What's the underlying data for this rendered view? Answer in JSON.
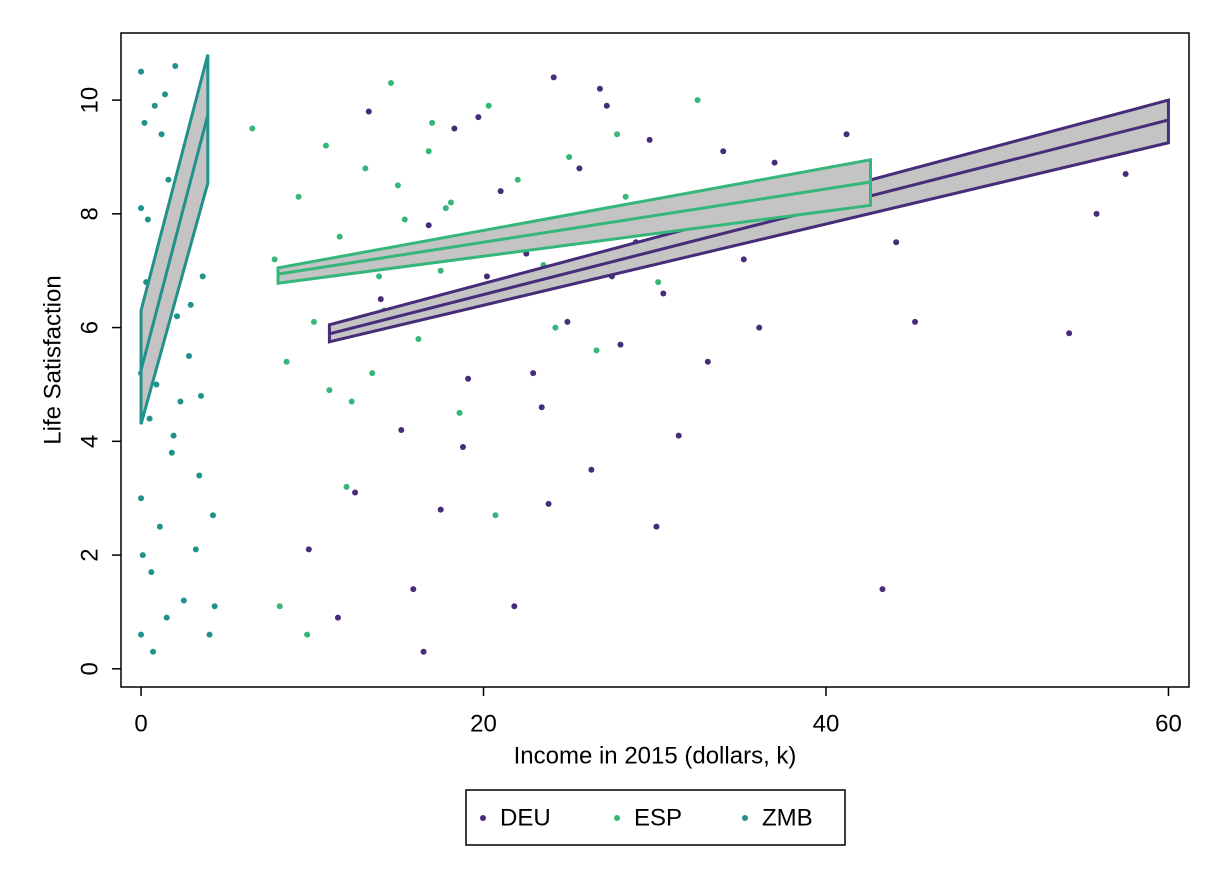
{
  "chart_data": {
    "type": "scatter",
    "x_label": "Income in 2015 (dollars, k)",
    "y_label": "Life Satisfaction",
    "xlim": [
      -1.17,
      61.2
    ],
    "ylim": [
      -0.32,
      11.18
    ],
    "xticks": [
      0,
      20,
      40,
      60
    ],
    "yticks": [
      0,
      2,
      4,
      6,
      8,
      10
    ],
    "grid": false,
    "legend_position": "bottom",
    "series": [
      {
        "name": "DEU",
        "color": "#472c7a",
        "x": [
          12.5,
          14,
          15.2,
          16.8,
          17.5,
          18.3,
          19.1,
          20.2,
          21,
          21.8,
          22.5,
          23.4,
          24.1,
          24.9,
          25.6,
          26.3,
          27.2,
          28,
          28.9,
          29.7,
          30.5,
          31.4,
          32.2,
          33.1,
          34,
          35.2,
          36.1,
          37,
          13.3,
          15.9,
          18.8,
          22.9,
          26.8,
          30.1,
          41.2,
          42.5,
          43.3,
          44.1,
          45.2,
          54.2,
          55.8,
          57.5,
          11.5,
          9.8,
          16.5,
          23.8,
          19.7,
          27.5
        ],
        "values": [
          3.1,
          6.5,
          4.2,
          7.8,
          2.8,
          9.5,
          5.1,
          6.9,
          8.4,
          1.1,
          7.3,
          4.6,
          10.4,
          6.1,
          8.8,
          3.5,
          9.9,
          5.7,
          7.5,
          9.3,
          6.6,
          4.1,
          8.2,
          5.4,
          9.1,
          7.2,
          6.0,
          8.9,
          9.8,
          1.4,
          3.9,
          5.2,
          10.2,
          2.5,
          9.4,
          8.1,
          1.4,
          7.5,
          6.1,
          5.9,
          8.0,
          8.7,
          0.9,
          2.1,
          0.3,
          2.9,
          9.7,
          6.9
        ],
        "fit": {
          "x": [
            11,
            60
          ],
          "values": [
            5.89,
            9.65
          ],
          "lower": [
            5.75,
            9.25
          ],
          "upper": [
            6.05,
            10.0
          ]
        }
      },
      {
        "name": "ESP",
        "color": "#35b779",
        "x": [
          6.5,
          7.8,
          8.5,
          9.2,
          10.1,
          10.8,
          11.6,
          12.3,
          13.1,
          13.9,
          14.6,
          15.4,
          16.2,
          17,
          17.8,
          18.6,
          19.4,
          20.3,
          21.1,
          22,
          23.5,
          25,
          26.6,
          28.3,
          30.2,
          32.5,
          34.8,
          12,
          14.2,
          16.8,
          18.1,
          9.7,
          11,
          15,
          8.1,
          17.5,
          20.7,
          24.2,
          27.8,
          13.5
        ],
        "values": [
          9.5,
          7.2,
          5.4,
          8.3,
          6.1,
          9.2,
          7.6,
          4.7,
          8.8,
          6.9,
          10.3,
          7.9,
          5.8,
          9.6,
          8.1,
          4.5,
          7.4,
          9.9,
          6.5,
          8.6,
          7.1,
          9.0,
          5.6,
          8.3,
          6.8,
          10.0,
          7.7,
          3.2,
          6.3,
          9.1,
          8.2,
          0.6,
          4.9,
          8.5,
          1.1,
          7.0,
          2.7,
          6.0,
          9.4,
          5.2
        ],
        "fit": {
          "x": [
            8,
            42.6
          ],
          "values": [
            6.94,
            8.56
          ],
          "lower": [
            6.78,
            8.15
          ],
          "upper": [
            7.05,
            8.95
          ]
        }
      },
      {
        "name": "ZMB",
        "color": "#21918c",
        "x": [
          0,
          0,
          0,
          0,
          0,
          0.2,
          0.3,
          0.5,
          0.6,
          0.8,
          1,
          1.1,
          1.3,
          1.5,
          1.6,
          1.8,
          2,
          2.1,
          2.3,
          2.5,
          2.6,
          2.8,
          3,
          3.2,
          3.4,
          3.6,
          3.8,
          4,
          4.2,
          0.4,
          0.9,
          1.4,
          1.9,
          2.4,
          2.9,
          0.1,
          0.7,
          1.2,
          3.5,
          4.3
        ],
        "values": [
          10.5,
          8.1,
          5.2,
          3.0,
          0.6,
          9.6,
          6.8,
          4.4,
          1.7,
          9.9,
          7.3,
          2.5,
          5.9,
          0.9,
          8.6,
          3.8,
          10.6,
          6.2,
          4.7,
          1.2,
          9.2,
          5.5,
          7.7,
          2.1,
          3.4,
          6.9,
          8.8,
          0.6,
          2.7,
          7.9,
          5.0,
          10.1,
          4.1,
          8.3,
          6.4,
          2.0,
          0.3,
          9.4,
          4.8,
          1.1
        ],
        "fit": {
          "x": [
            0,
            3.9
          ],
          "values": [
            5.25,
            9.74
          ],
          "lower": [
            4.3,
            8.54
          ],
          "upper": [
            6.3,
            10.8
          ]
        }
      }
    ]
  }
}
